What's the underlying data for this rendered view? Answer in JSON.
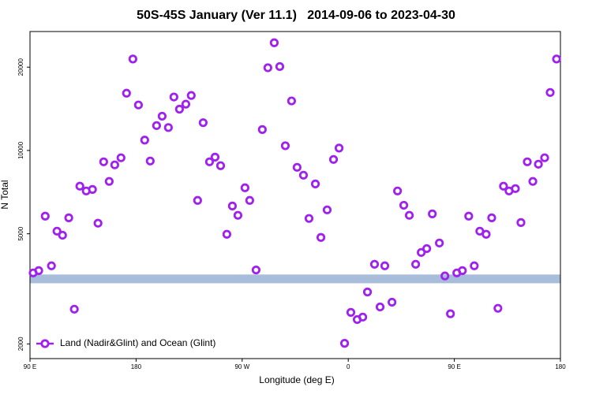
{
  "chart_data": {
    "type": "scatter",
    "title": "50S-45S January (Ver 11.1)   2014-09-06 to 2023-04-30",
    "xlabel": "Longitude (deg E)",
    "ylabel": "N Total",
    "yscale": "log",
    "legend": "lower left",
    "xlim": [
      90,
      540
    ],
    "ylim": [
      1770,
      26900
    ],
    "xticks": [
      {
        "value": 90,
        "label": "90 E"
      },
      {
        "value": 180,
        "label": "180"
      },
      {
        "value": 270,
        "label": "90 W"
      },
      {
        "value": 360,
        "label": "0"
      },
      {
        "value": 450,
        "label": "90 E"
      },
      {
        "value": 540,
        "label": "180"
      }
    ],
    "yticks": [
      2000,
      5000,
      10000,
      20000
    ],
    "band": {
      "color": "#a7bdd9",
      "range": [
        3313,
        3563
      ]
    },
    "series": [
      {
        "name": "Land (Nadir&Glint) and Ocean (Glint)",
        "color": "#a020f0",
        "x": [
          92.7,
          97.4,
          102.9,
          108.2,
          112.9,
          117.6,
          122.9,
          127.6,
          132.3,
          137.7,
          143.0,
          147.7,
          152.5,
          157.2,
          161.9,
          167.2,
          171.9,
          177.3,
          182.0,
          187.3,
          192.0,
          197.4,
          202.1,
          207.4,
          212.1,
          216.8,
          222.2,
          226.8,
          232.2,
          236.9,
          242.3,
          247.0,
          251.7,
          257.0,
          261.7,
          266.4,
          272.4,
          276.4,
          281.8,
          287.1,
          291.8,
          297.2,
          301.9,
          306.6,
          311.9,
          316.6,
          322.0,
          326.7,
          332.1,
          336.8,
          342.1,
          347.5,
          352.2,
          356.9,
          362.2,
          367.6,
          372.3,
          376.3,
          382.3,
          387.0,
          391.0,
          397.1,
          401.8,
          407.1,
          411.8,
          417.2,
          421.9,
          426.6,
          431.3,
          437.3,
          442.0,
          446.7,
          452.1,
          456.8,
          462.2,
          466.9,
          471.6,
          477.0,
          481.7,
          487.0,
          491.7,
          496.4,
          501.8,
          506.5,
          511.9,
          516.6,
          521.3,
          526.6,
          531.3,
          536.7
        ],
        "values": [
          3610,
          3680,
          5790,
          3830,
          5110,
          4940,
          5710,
          2670,
          7430,
          7140,
          7230,
          5460,
          9100,
          7730,
          8870,
          9410,
          16100,
          21400,
          14600,
          10900,
          9160,
          12300,
          13300,
          12100,
          15600,
          14100,
          14700,
          15800,
          6600,
          12600,
          9100,
          9460,
          8810,
          4980,
          6300,
          5830,
          7330,
          6600,
          3700,
          11900,
          19900,
          24500,
          20100,
          10400,
          15100,
          8690,
          8140,
          5680,
          7570,
          4850,
          6100,
          9280,
          10200,
          2010,
          2600,
          2450,
          2500,
          3080,
          3880,
          2720,
          3830,
          2830,
          7140,
          6340,
          5830,
          3880,
          4280,
          4420,
          5900,
          4630,
          3520,
          2570,
          3610,
          3680,
          5790,
          3830,
          5110,
          4980,
          5710,
          2690,
          7430,
          7140,
          7280,
          5490,
          9100,
          7730,
          8920,
          9410,
          16200,
          21400
        ]
      }
    ]
  }
}
